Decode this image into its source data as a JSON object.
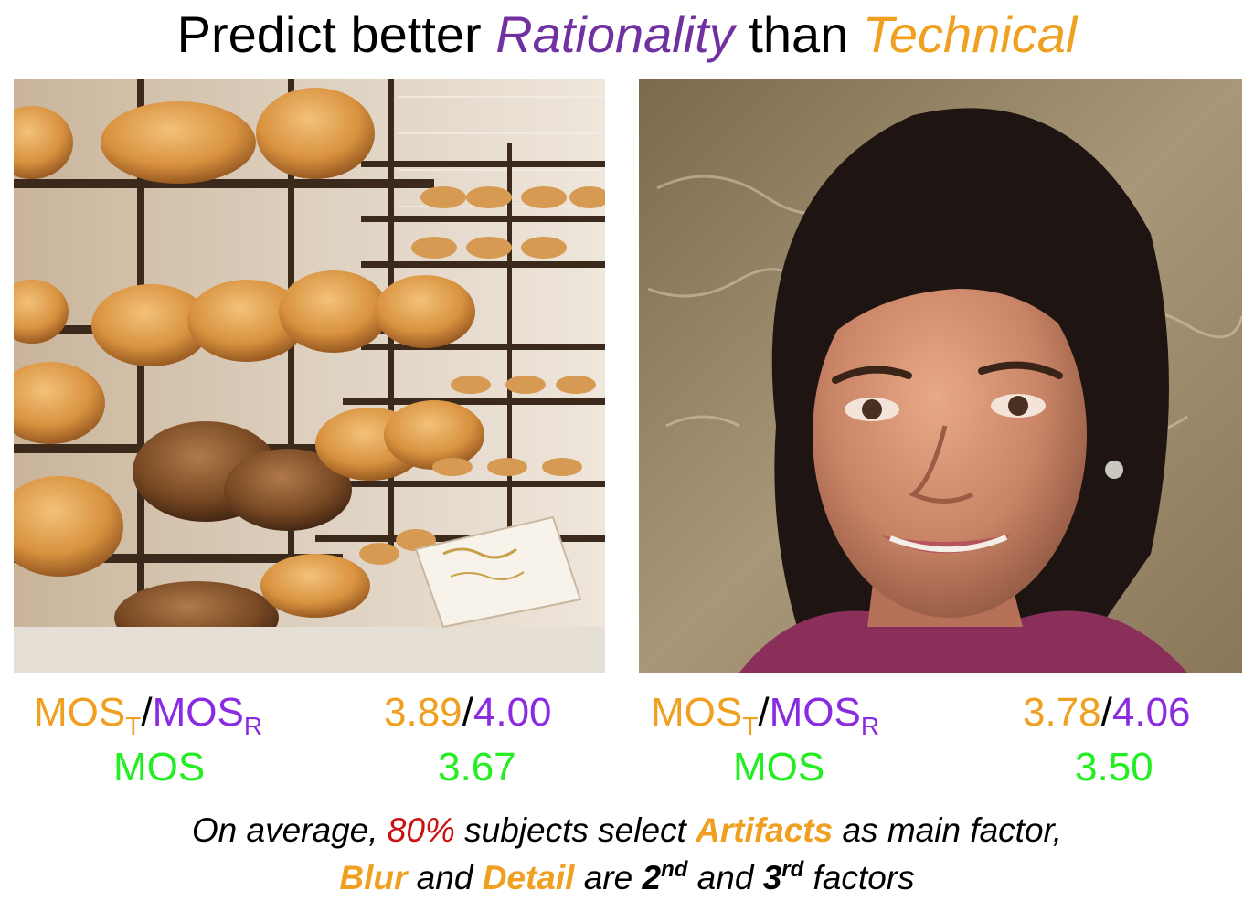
{
  "title": {
    "prefix": "Predict better ",
    "rationality": "Rationality",
    "middle": " than ",
    "technical": "Technical"
  },
  "images": [
    {
      "subject": "bakery bread shelves"
    },
    {
      "subject": "woman portrait"
    }
  ],
  "panels": [
    {
      "mos_t_label": "MOS",
      "mos_t_sub": "T",
      "slash": "/",
      "mos_r_label": "MOS",
      "mos_r_sub": "R",
      "mos_t_value": "3.89",
      "mos_r_value": "4.00",
      "mos_label": "MOS",
      "mos_value": "3.67"
    },
    {
      "mos_t_label": "MOS",
      "mos_t_sub": "T",
      "slash": "/",
      "mos_r_label": "MOS",
      "mos_r_sub": "R",
      "mos_t_value": "3.78",
      "mos_r_value": "4.06",
      "mos_label": "MOS",
      "mos_value": "3.50"
    }
  ],
  "caption": {
    "line1_a": "On average, ",
    "line1_pct": "80%",
    "line1_b": " subjects select ",
    "line1_artifacts": "Artifacts",
    "line1_c": " as main factor,",
    "line2_blur": "Blur",
    "line2_a": " and ",
    "line2_detail": "Detail",
    "line2_b": " are ",
    "line2_2": "2",
    "line2_2sup": "nd",
    "line2_c": " and ",
    "line2_3": "3",
    "line2_3sup": "rd",
    "line2_d": " factors"
  },
  "colors": {
    "technical": "#f0a020",
    "rationality_title": "#7030a0",
    "rationality_value": "#8a2be2",
    "mos": "#22ee22",
    "percent": "#cc1111"
  }
}
